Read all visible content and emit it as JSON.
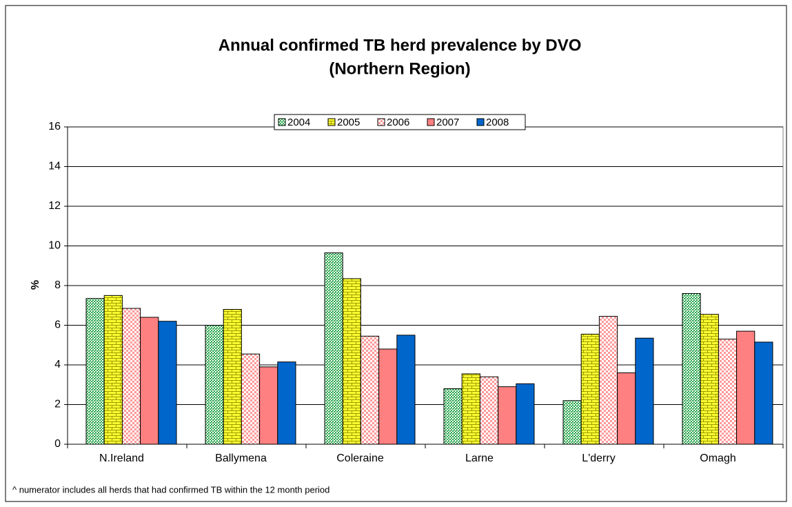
{
  "chart_data": {
    "type": "bar",
    "title": "Annual confirmed TB herd prevalence by DVO",
    "subtitle": "(Northern Region)",
    "y_label": "%",
    "footnote": "^ numerator includes all herds that had confirmed TB within the 12 month period",
    "categories": [
      "N.Ireland",
      "Ballymena",
      "Coleraine",
      "Larne",
      "L'derry",
      "Omagh"
    ],
    "series": [
      {
        "name": "2004",
        "color": "#33aa55",
        "values": [
          7.35,
          6.0,
          9.65,
          2.8,
          2.2,
          7.6
        ]
      },
      {
        "name": "2005",
        "color": "#ffff33",
        "values": [
          7.5,
          6.8,
          8.35,
          3.55,
          5.55,
          6.55
        ]
      },
      {
        "name": "2006",
        "color": "#ff9999",
        "values": [
          6.85,
          4.55,
          5.45,
          3.4,
          6.45,
          5.3
        ]
      },
      {
        "name": "2007",
        "color": "#ff8080",
        "values": [
          6.4,
          3.9,
          4.8,
          2.9,
          3.6,
          5.7
        ]
      },
      {
        "name": "2008",
        "color": "#0066cc",
        "values": [
          6.2,
          4.15,
          5.5,
          3.05,
          5.35,
          5.15
        ]
      }
    ],
    "ylim": [
      0,
      16
    ],
    "yticks": [
      0,
      2,
      4,
      6,
      8,
      10,
      12,
      14,
      16
    ],
    "grid": true,
    "legend": "top"
  }
}
